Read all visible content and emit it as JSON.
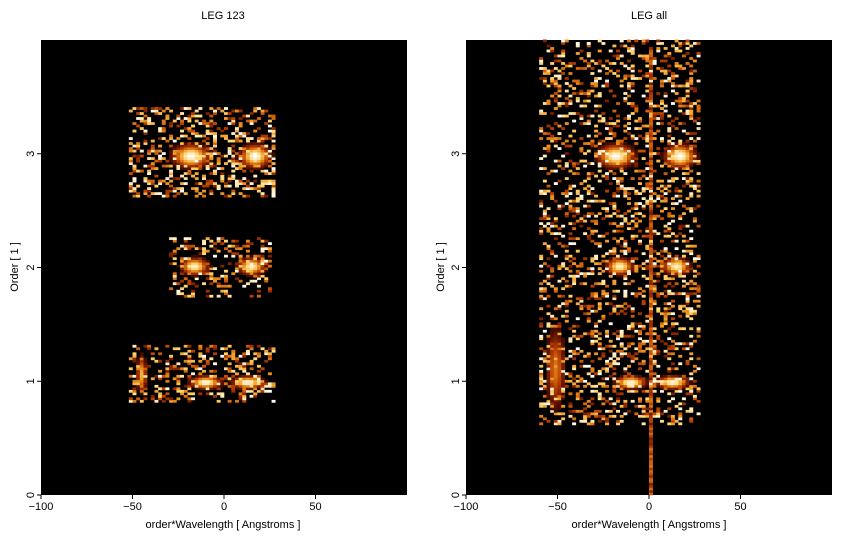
{
  "chart_data": [
    {
      "type": "heatmap",
      "title": "LEG 123",
      "xlabel": "order*Wavelength [ Angstroms ]",
      "ylabel": "Order [ 1 ]",
      "xlim": [
        -100,
        100
      ],
      "ylim": [
        0,
        4
      ],
      "xticks": [
        -100,
        -50,
        0,
        50
      ],
      "yticks": [
        0,
        1,
        2,
        3
      ],
      "colormap": [
        "#000000",
        "#5a1000",
        "#b43c00",
        "#e88a1a",
        "#ffd36b",
        "#ffffff"
      ],
      "blobs": [
        {
          "x": -19,
          "y": 2.97,
          "w": 11,
          "h": 0.11,
          "v": 1.0
        },
        {
          "x": 16,
          "y": 2.97,
          "w": 9,
          "h": 0.11,
          "v": 1.0
        },
        {
          "x": -17,
          "y": 2.0,
          "w": 8,
          "h": 0.08,
          "v": 0.95
        },
        {
          "x": 14,
          "y": 2.0,
          "w": 8,
          "h": 0.08,
          "v": 0.95
        },
        {
          "x": -11,
          "y": 0.98,
          "w": 9,
          "h": 0.06,
          "v": 1.0
        },
        {
          "x": 12,
          "y": 0.98,
          "w": 9,
          "h": 0.06,
          "v": 1.0
        },
        {
          "x": -46,
          "y": 1.05,
          "w": 3,
          "h": 0.18,
          "v": 0.7
        }
      ],
      "clusters": [
        {
          "x": [
            -52,
            27
          ],
          "y": [
            2.6,
            3.4
          ],
          "density": 0.35
        },
        {
          "x": [
            -30,
            25
          ],
          "y": [
            1.72,
            2.25
          ],
          "density": 0.3
        },
        {
          "x": [
            -53,
            27
          ],
          "y": [
            0.8,
            1.32
          ],
          "density": 0.35
        }
      ]
    },
    {
      "type": "heatmap",
      "title": "LEG all",
      "xlabel": "order*Wavelength [ Angstroms ]",
      "ylabel": "Order [ 1 ]",
      "xlim": [
        -100,
        100
      ],
      "ylim": [
        0,
        4
      ],
      "xticks": [
        -100,
        -50,
        0,
        50
      ],
      "yticks": [
        0,
        1,
        2,
        3
      ],
      "colormap": [
        "#000000",
        "#5a1000",
        "#b43c00",
        "#e88a1a",
        "#ffd36b",
        "#ffffff"
      ],
      "blobs": [
        {
          "x": -19,
          "y": 2.97,
          "w": 11,
          "h": 0.11,
          "v": 1.0
        },
        {
          "x": 16,
          "y": 2.97,
          "w": 9,
          "h": 0.11,
          "v": 1.0
        },
        {
          "x": -17,
          "y": 2.0,
          "w": 8,
          "h": 0.08,
          "v": 0.95
        },
        {
          "x": 14,
          "y": 2.0,
          "w": 8,
          "h": 0.08,
          "v": 0.95
        },
        {
          "x": -11,
          "y": 0.98,
          "w": 9,
          "h": 0.06,
          "v": 1.0
        },
        {
          "x": 12,
          "y": 0.98,
          "w": 9,
          "h": 0.06,
          "v": 1.0
        },
        {
          "x": -52,
          "y": 1.1,
          "w": 6,
          "h": 0.4,
          "v": 0.55
        }
      ],
      "clusters": [
        {
          "x": [
            -60,
            27
          ],
          "y": [
            0.6,
            4.0
          ],
          "density": 0.28
        }
      ]
    }
  ]
}
